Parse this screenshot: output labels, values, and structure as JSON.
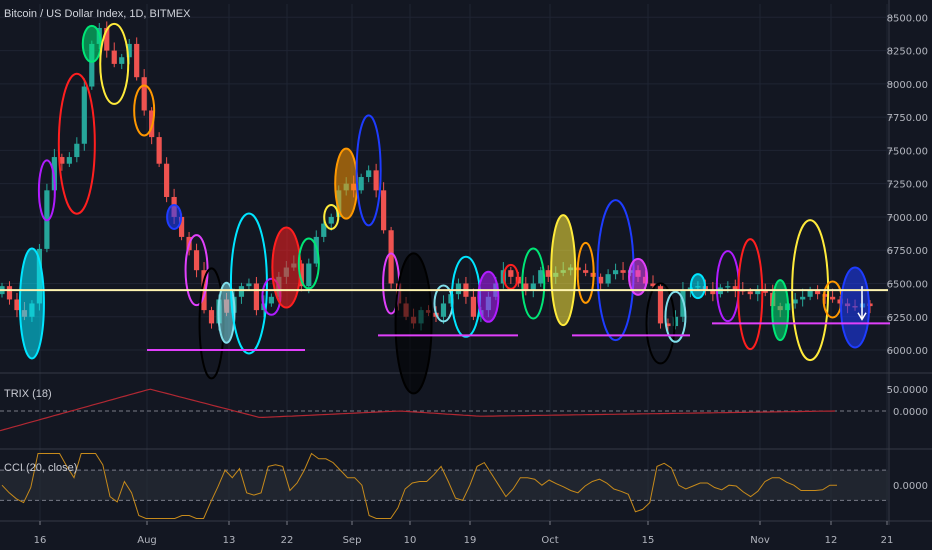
{
  "header": {
    "title": "Bitcoin / US Dollar Index, 1D, BITMEX"
  },
  "indicators": {
    "trix_label": "TRIX (18)",
    "cci_label": "CCI (20, close)"
  },
  "colors": {
    "background": "#131722",
    "up": "#26a69a",
    "down": "#ef5350",
    "support_line": "#fff5b1",
    "base_lines": "#e040fb",
    "trix_line": "#b22833",
    "cci_line": "#c68a1b"
  },
  "chart_data": [
    {
      "type": "candlestick",
      "title": "Bitcoin / US Dollar Index, 1D, BITMEX",
      "y_ticks": [
        "8500.00",
        "8250.00",
        "8000.00",
        "7750.00",
        "7500.00",
        "7250.00",
        "7000.00",
        "6750.00",
        "6500.00",
        "6250.00",
        "6000.00"
      ],
      "ylim": [
        5850,
        8600
      ],
      "x_tick_labels": [
        "16",
        "Aug",
        "13",
        "22",
        "Sep",
        "10",
        "19",
        "Oct",
        "15",
        "Nov",
        "12",
        "21"
      ],
      "horizontal_line": 6450,
      "support_lines": [
        6000,
        6110,
        6110,
        6200
      ],
      "closes": [
        6480,
        6380,
        6300,
        6250,
        6350,
        6760,
        7200,
        7450,
        7400,
        7450,
        7550,
        7980,
        8300,
        8420,
        8250,
        8150,
        8200,
        8300,
        8050,
        7800,
        7600,
        7400,
        7150,
        7000,
        6850,
        6750,
        6600,
        6300,
        6200,
        6380,
        6280,
        6400,
        6480,
        6500,
        6300,
        6350,
        6400,
        6550,
        6620,
        6650,
        6480,
        6650,
        6850,
        6950,
        7000,
        7200,
        7250,
        7200,
        7300,
        7350,
        7200,
        6900,
        6500,
        6350,
        6250,
        6200,
        6300,
        6280,
        6250,
        6350,
        6420,
        6500,
        6400,
        6250,
        6300,
        6400,
        6500,
        6600,
        6550,
        6500,
        6450,
        6500,
        6600,
        6550,
        6580,
        6600,
        6620,
        6600,
        6580,
        6550,
        6500,
        6570,
        6600,
        6580,
        6600,
        6550,
        6500,
        6480,
        6200,
        6180,
        6250,
        6450,
        6470,
        6480,
        6450,
        6420,
        6470,
        6480,
        6450,
        6440,
        6420,
        6450,
        6430,
        6330,
        6300,
        6350,
        6380,
        6400,
        6450,
        6420,
        6400,
        6380,
        6350,
        6330,
        6320,
        6350,
        6330
      ],
      "trix": {
        "ylim": [
          -80,
          80
        ],
        "y_ticks": [
          "50.0000",
          "0.0000"
        ]
      },
      "cci": {
        "ylim": [
          -230,
          220
        ],
        "y_ticks": [
          "0.0000"
        ],
        "levels": [
          100,
          -100
        ]
      }
    }
  ]
}
